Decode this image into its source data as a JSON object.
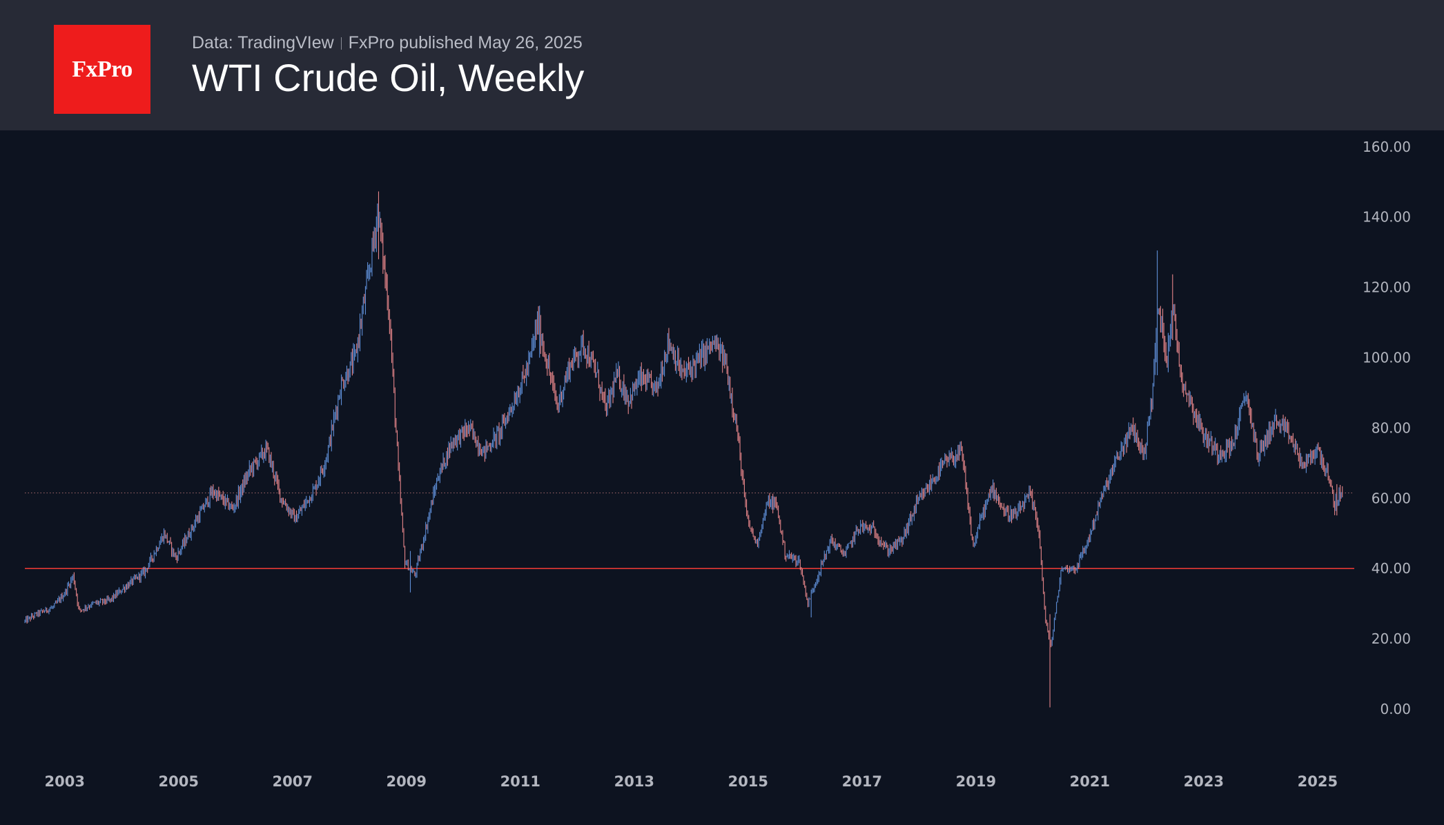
{
  "header": {
    "logo_text": "FxPro",
    "data_source": "Data: TradingVIew",
    "published": "FxPro published May 26, 2025",
    "title": "WTI Crude Oil, Weekly"
  },
  "chart_data": {
    "type": "candlestick",
    "title": "WTI Crude Oil, Weekly",
    "xlabel": "",
    "ylabel": "",
    "x_range": [
      2002.3,
      2025.45
    ],
    "ylim": [
      -20,
      160
    ],
    "y_ticks": [
      0,
      20,
      40,
      60,
      80,
      100,
      120,
      140,
      160
    ],
    "y_tick_labels": [
      "0.00",
      "20.00",
      "40.00",
      "60.00",
      "80.00",
      "100.00",
      "120.00",
      "140.00",
      "160.00"
    ],
    "x_ticks": [
      2003,
      2005,
      2007,
      2009,
      2011,
      2013,
      2015,
      2017,
      2019,
      2021,
      2023,
      2025
    ],
    "x_tick_labels": [
      "2003",
      "2005",
      "2007",
      "2009",
      "2011",
      "2013",
      "2015",
      "2017",
      "2019",
      "2021",
      "2023",
      "2025"
    ],
    "horizontal_line": {
      "value": 40,
      "color": "#e53935",
      "style": "solid"
    },
    "last_price_line": {
      "value": 61.5,
      "color": "#d08080",
      "style": "dotted"
    },
    "colors": {
      "up": "#5f8fd8",
      "down": "#e7868a"
    },
    "path_points": [
      [
        2002.3,
        25
      ],
      [
        2002.5,
        27
      ],
      [
        2002.8,
        29
      ],
      [
        2003.0,
        33
      ],
      [
        2003.15,
        38
      ],
      [
        2003.25,
        28
      ],
      [
        2003.5,
        30
      ],
      [
        2003.8,
        31
      ],
      [
        2004.0,
        34
      ],
      [
        2004.4,
        39
      ],
      [
        2004.75,
        50
      ],
      [
        2004.95,
        43
      ],
      [
        2005.25,
        52
      ],
      [
        2005.6,
        62
      ],
      [
        2005.95,
        57
      ],
      [
        2006.25,
        68
      ],
      [
        2006.55,
        74
      ],
      [
        2006.8,
        60
      ],
      [
        2007.05,
        54
      ],
      [
        2007.4,
        63
      ],
      [
        2007.6,
        72
      ],
      [
        2007.85,
        92
      ],
      [
        2008.1,
        100
      ],
      [
        2008.35,
        125
      ],
      [
        2008.5,
        142
      ],
      [
        2008.7,
        112
      ],
      [
        2008.85,
        70
      ],
      [
        2008.97,
        42
      ],
      [
        2009.15,
        38
      ],
      [
        2009.35,
        52
      ],
      [
        2009.55,
        66
      ],
      [
        2009.8,
        76
      ],
      [
        2010.1,
        80
      ],
      [
        2010.35,
        73
      ],
      [
        2010.65,
        79
      ],
      [
        2010.95,
        90
      ],
      [
        2011.15,
        98
      ],
      [
        2011.3,
        110
      ],
      [
        2011.45,
        100
      ],
      [
        2011.65,
        86
      ],
      [
        2011.85,
        97
      ],
      [
        2012.1,
        104
      ],
      [
        2012.35,
        95
      ],
      [
        2012.5,
        85
      ],
      [
        2012.7,
        95
      ],
      [
        2012.9,
        88
      ],
      [
        2013.1,
        94
      ],
      [
        2013.4,
        91
      ],
      [
        2013.6,
        105
      ],
      [
        2013.85,
        95
      ],
      [
        2014.05,
        98
      ],
      [
        2014.4,
        104
      ],
      [
        2014.6,
        99
      ],
      [
        2014.8,
        80
      ],
      [
        2014.98,
        54
      ],
      [
        2015.15,
        47
      ],
      [
        2015.35,
        59
      ],
      [
        2015.5,
        58
      ],
      [
        2015.65,
        44
      ],
      [
        2015.9,
        42
      ],
      [
        2016.05,
        30
      ],
      [
        2016.2,
        37
      ],
      [
        2016.45,
        48
      ],
      [
        2016.7,
        44
      ],
      [
        2016.95,
        52
      ],
      [
        2017.2,
        51
      ],
      [
        2017.45,
        45
      ],
      [
        2017.7,
        48
      ],
      [
        2017.95,
        58
      ],
      [
        2018.2,
        64
      ],
      [
        2018.45,
        70
      ],
      [
        2018.75,
        73
      ],
      [
        2018.95,
        46
      ],
      [
        2019.1,
        55
      ],
      [
        2019.3,
        63
      ],
      [
        2019.5,
        56
      ],
      [
        2019.7,
        55
      ],
      [
        2019.95,
        61
      ],
      [
        2020.1,
        52
      ],
      [
        2020.22,
        25
      ],
      [
        2020.32,
        18
      ],
      [
        2020.5,
        40
      ],
      [
        2020.75,
        40
      ],
      [
        2020.95,
        47
      ],
      [
        2021.2,
        60
      ],
      [
        2021.5,
        72
      ],
      [
        2021.75,
        80
      ],
      [
        2021.95,
        72
      ],
      [
        2022.1,
        90
      ],
      [
        2022.2,
        115
      ],
      [
        2022.35,
        100
      ],
      [
        2022.45,
        115
      ],
      [
        2022.6,
        95
      ],
      [
        2022.8,
        86
      ],
      [
        2023.0,
        78
      ],
      [
        2023.25,
        73
      ],
      [
        2023.5,
        75
      ],
      [
        2023.75,
        90
      ],
      [
        2023.95,
        72
      ],
      [
        2024.25,
        82
      ],
      [
        2024.5,
        78
      ],
      [
        2024.75,
        69
      ],
      [
        2025.0,
        74
      ],
      [
        2025.15,
        68
      ],
      [
        2025.3,
        58
      ],
      [
        2025.4,
        61.5
      ]
    ],
    "extremes": [
      {
        "x": 2008.52,
        "high": 147.3,
        "low": 128
      },
      {
        "x": 2009.07,
        "high": 45,
        "low": 33.2
      },
      {
        "x": 2011.33,
        "high": 114.8,
        "low": 100
      },
      {
        "x": 2016.1,
        "high": 34,
        "low": 26.1
      },
      {
        "x": 2020.3,
        "high": 27,
        "low": 0.5
      },
      {
        "x": 2022.18,
        "high": 130.5,
        "low": 95
      },
      {
        "x": 2022.46,
        "high": 123.7,
        "low": 105
      },
      {
        "x": 2025.33,
        "high": 64,
        "low": 55.1
      }
    ]
  }
}
